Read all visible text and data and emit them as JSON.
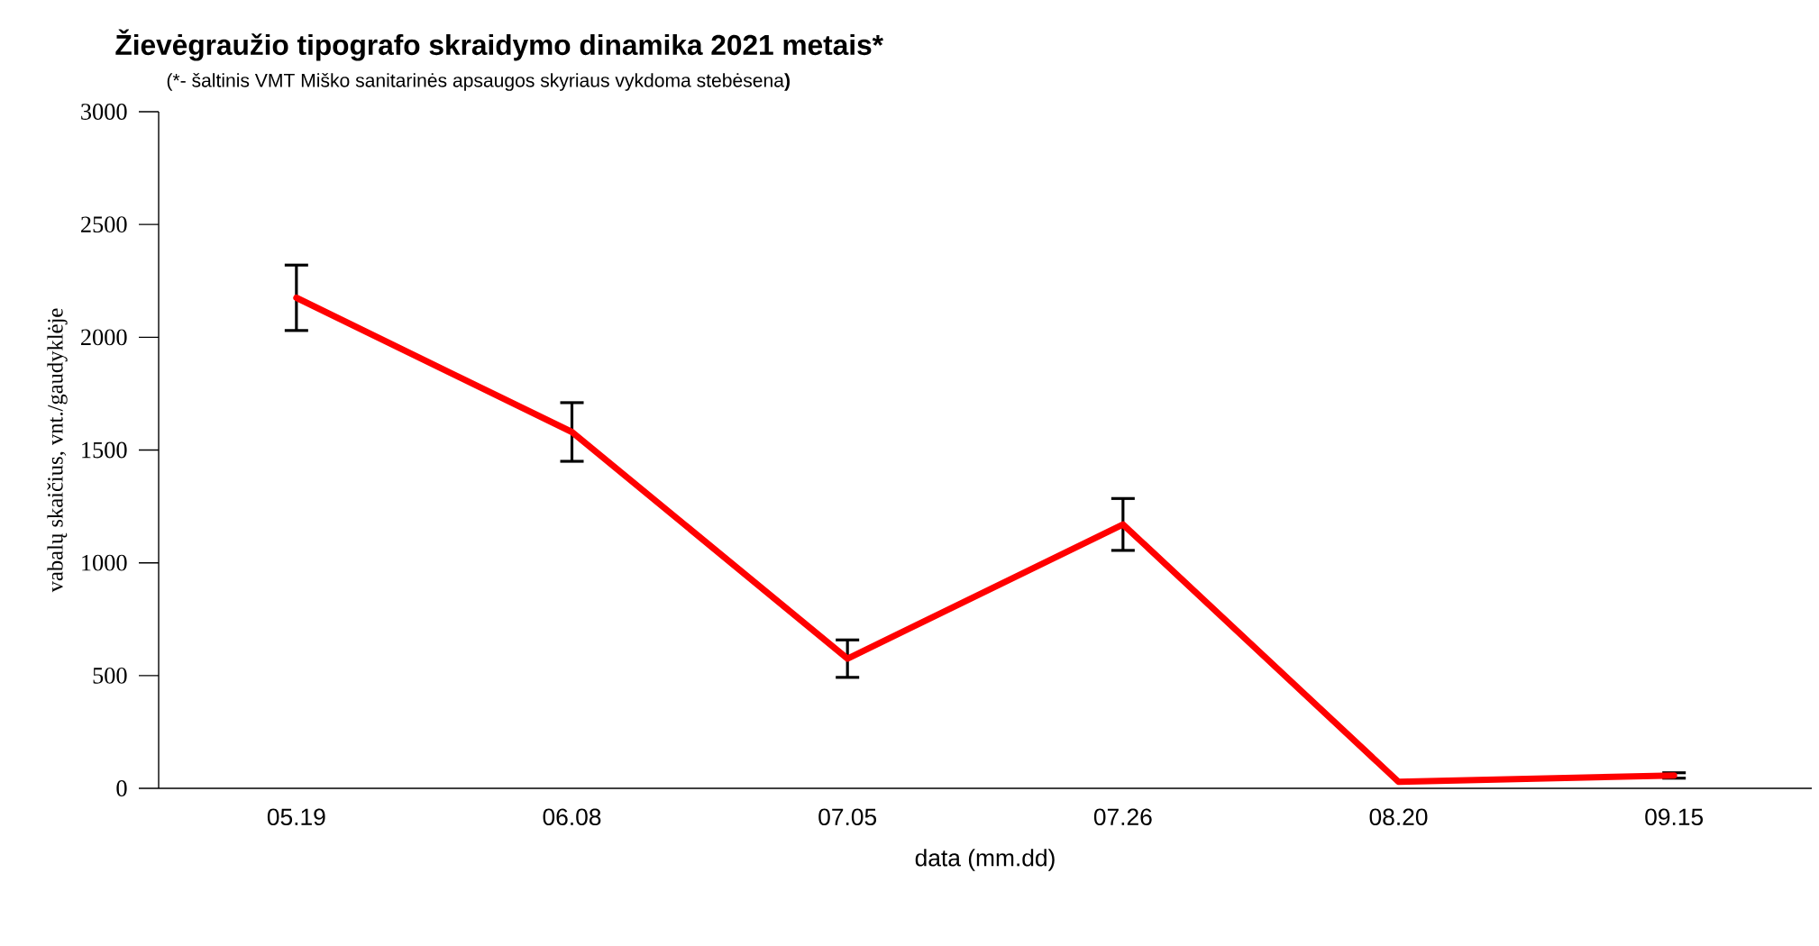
{
  "chart_data": {
    "type": "line",
    "title": "Žievėgraužio tipografo skraidymo dinamika 2021 metais*",
    "subtitle": "(*- šaltinis VMT Miško sanitarinės apsaugos skyriaus vykdoma stebėsena**)**",
    "xlabel": "data (mm.dd)",
    "ylabel": "vabalų skaičius, vnt./gaudyklėje",
    "categories": [
      "05.19",
      "06.08",
      "07.05",
      "07.26",
      "08.20",
      "09.15"
    ],
    "series": [
      {
        "color": "#ff0000",
        "values": [
          2175,
          1580,
          575,
          1170,
          29,
          57
        ],
        "errors": [
          145,
          130,
          83,
          115,
          null,
          12
        ]
      }
    ],
    "ylim": [
      0,
      3000
    ],
    "yticks": [
      0,
      500,
      1000,
      1500,
      2000,
      2500,
      3000
    ],
    "grid": false,
    "marker": "none",
    "line_style": "solid"
  }
}
